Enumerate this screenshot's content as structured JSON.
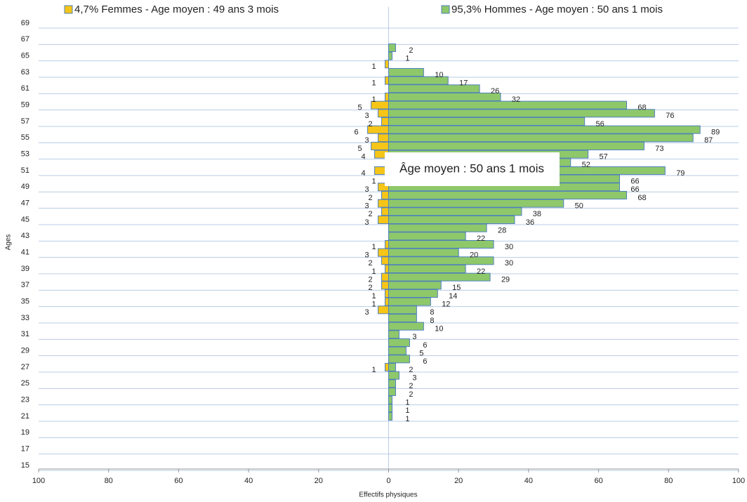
{
  "chart_data": {
    "type": "pyramid",
    "xlabel": "Effectifs physiques",
    "ylabel": "Ages",
    "annotation": "Âge moyen : 50 ans 1 mois",
    "legend": "top",
    "grid": true,
    "xlim": [
      -100,
      100
    ],
    "xticks": [
      {
        "value": -100,
        "label": "100"
      },
      {
        "value": -80,
        "label": "80"
      },
      {
        "value": -60,
        "label": "60"
      },
      {
        "value": -40,
        "label": "40"
      },
      {
        "value": -20,
        "label": "20"
      },
      0,
      20,
      40,
      60,
      80,
      100
    ],
    "categories": [
      15,
      null,
      17,
      null,
      19,
      null,
      21,
      null,
      23,
      null,
      25,
      null,
      27,
      null,
      29,
      null,
      31,
      null,
      33,
      null,
      35,
      null,
      37,
      null,
      39,
      null,
      41,
      null,
      43,
      null,
      45,
      null,
      47,
      null,
      49,
      null,
      51,
      null,
      53,
      null,
      55,
      null,
      57,
      null,
      59,
      null,
      61,
      null,
      63,
      null,
      65,
      null,
      67,
      null,
      69
    ],
    "series": [
      {
        "name": "4,7% Femmes - Age moyen : 49 ans 3 mois",
        "color": "#f5c518",
        "values": [
          null,
          null,
          null,
          null,
          null,
          null,
          null,
          null,
          null,
          null,
          null,
          null,
          -1,
          null,
          null,
          null,
          null,
          null,
          null,
          -3,
          -1,
          -1,
          -2,
          -2,
          -1,
          -2,
          -3,
          -1,
          null,
          null,
          -3,
          -2,
          -3,
          -2,
          -3,
          -1,
          -4,
          null,
          -4,
          -5,
          -3,
          -6,
          -2,
          -3,
          -5,
          -1,
          null,
          -1,
          null,
          -1,
          null,
          null,
          null,
          null,
          null
        ],
        "value_labels": [
          null,
          null,
          null,
          null,
          null,
          null,
          null,
          null,
          null,
          null,
          null,
          null,
          "1",
          null,
          null,
          null,
          null,
          null,
          null,
          "3",
          "1",
          "1",
          "2",
          "2",
          "1",
          "2",
          "3",
          "1",
          null,
          null,
          "3",
          "2",
          "3",
          "2",
          "3",
          "1",
          "4",
          null,
          "4",
          "5",
          "3",
          "6",
          "2",
          "3",
          "5",
          "1",
          null,
          "1",
          null,
          "1",
          null,
          null,
          null,
          null,
          null
        ]
      },
      {
        "name": "95,3% Hommes - Age moyen : 50 ans 1 mois",
        "color": "#8ec86a",
        "values": [
          null,
          null,
          null,
          null,
          null,
          null,
          1,
          1,
          1,
          2,
          2,
          3,
          2,
          6,
          5,
          6,
          3,
          10,
          8,
          8,
          12,
          14,
          15,
          29,
          22,
          30,
          20,
          30,
          22,
          28,
          36,
          38,
          50,
          68,
          66,
          66,
          79,
          52,
          57,
          73,
          87,
          89,
          56,
          76,
          68,
          32,
          26,
          17,
          10,
          null,
          1,
          2,
          null,
          null,
          null
        ]
      }
    ]
  }
}
